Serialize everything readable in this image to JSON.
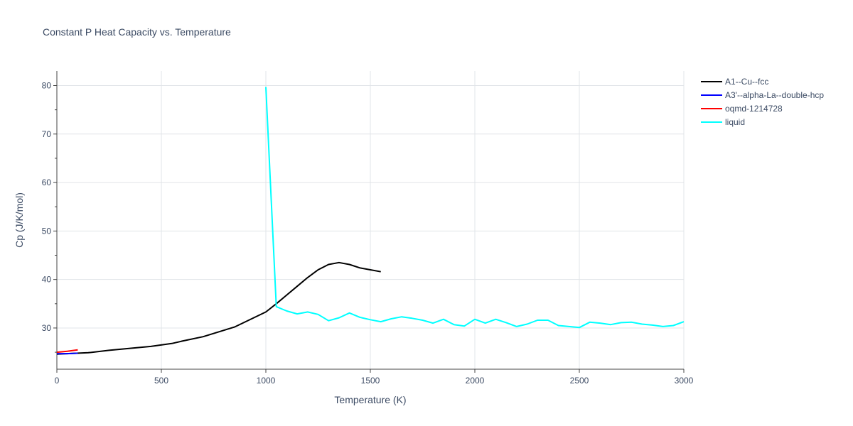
{
  "chart_data": {
    "type": "line",
    "title": "Constant P Heat Capacity vs. Temperature",
    "xlabel": "Temperature (K)",
    "ylabel": "Cp (J/K/mol)",
    "xlim": [
      0,
      3000
    ],
    "ylim": [
      21.5,
      83
    ],
    "xticks": [
      0,
      500,
      1000,
      1500,
      2000,
      2500,
      3000
    ],
    "yticks": [
      30,
      40,
      50,
      60,
      70,
      80
    ],
    "grid": true,
    "legend_position": "top-right",
    "series": [
      {
        "name": "A1--Cu--fcc",
        "color": "#000000",
        "x": [
          0,
          150,
          250,
          350,
          450,
          550,
          600,
          700,
          850,
          1000,
          1050,
          1100,
          1150,
          1200,
          1250,
          1300,
          1350,
          1400,
          1450,
          1500,
          1550
        ],
        "y": [
          24.6,
          24.9,
          25.4,
          25.8,
          26.2,
          26.8,
          27.3,
          28.2,
          30.2,
          33.3,
          35.0,
          36.8,
          38.6,
          40.4,
          42.0,
          43.1,
          43.5,
          43.1,
          42.4,
          42.0,
          41.6
        ]
      },
      {
        "name": "A3'--alpha-La--double-hcp",
        "color": "#0000ff",
        "x": [
          0,
          50,
          100
        ],
        "y": [
          24.7,
          24.7,
          24.8
        ]
      },
      {
        "name": "oqmd-1214728",
        "color": "#ff0000",
        "x": [
          0,
          50,
          100
        ],
        "y": [
          25.0,
          25.2,
          25.5
        ]
      },
      {
        "name": "liquid",
        "color": "#00ffff",
        "x": [
          1000,
          1050,
          1100,
          1150,
          1200,
          1250,
          1300,
          1350,
          1400,
          1450,
          1500,
          1550,
          1600,
          1650,
          1700,
          1750,
          1800,
          1850,
          1900,
          1950,
          2000,
          2050,
          2100,
          2150,
          2200,
          2250,
          2300,
          2350,
          2400,
          2450,
          2500,
          2550,
          2600,
          2650,
          2700,
          2750,
          2800,
          2850,
          2900,
          2950,
          3000
        ],
        "y": [
          79.7,
          34.4,
          33.5,
          32.9,
          33.3,
          32.8,
          31.5,
          32.1,
          33.1,
          32.2,
          31.7,
          31.3,
          31.9,
          32.3,
          32.0,
          31.6,
          31.0,
          31.8,
          30.7,
          30.4,
          31.8,
          31.0,
          31.8,
          31.1,
          30.3,
          30.8,
          31.6,
          31.6,
          30.5,
          30.3,
          30.1,
          31.2,
          31.0,
          30.7,
          31.1,
          31.2,
          30.8,
          30.6,
          30.3,
          30.5,
          31.3
        ]
      }
    ]
  }
}
